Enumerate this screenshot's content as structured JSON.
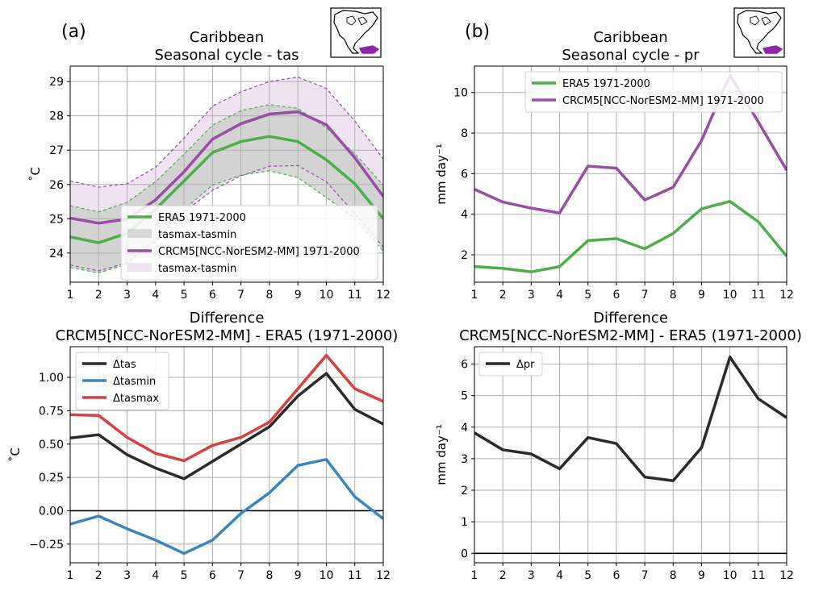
{
  "figure": {
    "panel_a_tag": "(a)",
    "panel_b_tag": "(b)",
    "colors": {
      "era5": "#4daf4a",
      "model": "#984ea3",
      "model_band": "#e9d9ee",
      "overlap_band": "#dcdcdc",
      "dtas": "#2b2b2b",
      "dtasmin": "#3a86bf",
      "dtasmax": "#d94040",
      "dpr": "#2b2b2b"
    }
  },
  "chart_data": [
    {
      "id": "tas",
      "type": "line",
      "title": [
        "Caribbean",
        "Seasonal cycle - tas"
      ],
      "xlabel": "",
      "ylabel": "˚C",
      "x": [
        1,
        2,
        3,
        4,
        5,
        6,
        7,
        8,
        9,
        10,
        11,
        12
      ],
      "xlim": [
        1,
        12
      ],
      "ylim": [
        23.15,
        29.45
      ],
      "yticks": [
        24,
        25,
        26,
        27,
        28,
        29
      ],
      "grid": true,
      "legend_position": "lower-right",
      "legend": [
        "ERA5 1971-2000",
        "tasmax-tasmin",
        "CRCM5[NCC-NorESM2-MM] 1971-2000",
        "tasmax-tasmin"
      ],
      "series": [
        {
          "name": "ERA5 1971-2000",
          "color_key": "era5",
          "values": [
            24.47,
            24.3,
            24.58,
            25.28,
            26.1,
            26.93,
            27.25,
            27.4,
            27.25,
            26.72,
            26.02,
            25.0
          ],
          "tasmax": [
            25.38,
            25.2,
            25.48,
            26.08,
            26.88,
            27.73,
            28.15,
            28.33,
            28.22,
            27.65,
            26.9,
            25.98
          ],
          "tasmin": [
            23.58,
            23.42,
            23.68,
            24.4,
            25.27,
            25.98,
            26.27,
            26.4,
            26.2,
            25.62,
            25.0,
            24.05
          ]
        },
        {
          "name": "CRCM5[NCC-NorESM2-MM] 1971-2000",
          "color_key": "model",
          "values": [
            25.02,
            24.87,
            24.99,
            25.55,
            26.37,
            27.32,
            27.77,
            28.05,
            28.12,
            27.74,
            26.78,
            25.65
          ],
          "tasmax": [
            26.1,
            25.92,
            26.02,
            26.5,
            27.35,
            28.28,
            28.7,
            29.0,
            29.13,
            28.8,
            27.85,
            26.75
          ],
          "tasmin": [
            23.65,
            23.48,
            23.72,
            24.32,
            25.2,
            25.83,
            26.25,
            26.53,
            26.55,
            26.08,
            25.15,
            24.18
          ]
        }
      ]
    },
    {
      "id": "pr",
      "type": "line",
      "title": [
        "Caribbean",
        "Seasonal cycle - pr"
      ],
      "xlabel": "",
      "ylabel": "mm day⁻¹",
      "x": [
        1,
        2,
        3,
        4,
        5,
        6,
        7,
        8,
        9,
        10,
        11,
        12
      ],
      "xlim": [
        1,
        12
      ],
      "ylim": [
        0.65,
        11.3
      ],
      "yticks": [
        2,
        4,
        6,
        8,
        10
      ],
      "grid": true,
      "legend_position": "top-right",
      "series": [
        {
          "name": "ERA5 1971-2000",
          "color_key": "era5",
          "values": [
            1.42,
            1.33,
            1.16,
            1.42,
            2.7,
            2.8,
            2.3,
            3.05,
            4.27,
            4.63,
            3.63,
            1.93
          ]
        },
        {
          "name": "CRCM5[NCC-NorESM2-MM] 1971-2000",
          "color_key": "model",
          "values": [
            5.23,
            4.6,
            4.3,
            4.06,
            6.37,
            6.27,
            4.7,
            5.33,
            7.63,
            10.85,
            8.55,
            6.17
          ]
        }
      ]
    },
    {
      "id": "diff_tas",
      "type": "line",
      "title": [
        "Difference",
        "CRCM5[NCC-NorESM2-MM] - ERA5 (1971-2000)"
      ],
      "xlabel": "",
      "ylabel": "˚C",
      "x": [
        1,
        2,
        3,
        4,
        5,
        6,
        7,
        8,
        9,
        10,
        11,
        12
      ],
      "xlim": [
        1,
        12
      ],
      "ylim": [
        -0.39,
        1.23
      ],
      "yticks": [
        -0.25,
        0.0,
        0.25,
        0.5,
        0.75,
        1.0
      ],
      "ytick_labels": [
        "−0.25",
        "0.00",
        "0.25",
        "0.50",
        "0.75",
        "1.00"
      ],
      "zero_line": true,
      "grid": true,
      "legend_position": "top-left",
      "series": [
        {
          "name": "Δtas",
          "color_key": "dtas",
          "values": [
            0.545,
            0.57,
            0.42,
            0.32,
            0.24,
            0.37,
            0.5,
            0.63,
            0.86,
            1.03,
            0.76,
            0.65
          ]
        },
        {
          "name": "Δtasmin",
          "color_key": "dtasmin",
          "values": [
            -0.1,
            -0.04,
            -0.135,
            -0.22,
            -0.32,
            -0.22,
            -0.02,
            0.135,
            0.34,
            0.385,
            0.105,
            -0.06
          ]
        },
        {
          "name": "Δtasmax",
          "color_key": "dtasmax",
          "values": [
            0.72,
            0.715,
            0.55,
            0.43,
            0.375,
            0.49,
            0.55,
            0.665,
            0.915,
            1.165,
            0.915,
            0.82
          ]
        }
      ]
    },
    {
      "id": "diff_pr",
      "type": "line",
      "title": [
        "Difference",
        "CRCM5[NCC-NorESM2-MM] - ERA5 (1971-2000)"
      ],
      "xlabel": "",
      "ylabel": "mm day⁻¹",
      "x": [
        1,
        2,
        3,
        4,
        5,
        6,
        7,
        8,
        9,
        10,
        11,
        12
      ],
      "xlim": [
        1,
        12
      ],
      "ylim": [
        -0.3,
        6.55
      ],
      "yticks": [
        0,
        1,
        2,
        3,
        4,
        5,
        6
      ],
      "zero_line": true,
      "grid": true,
      "legend_position": "top-left",
      "series": [
        {
          "name": "Δpr",
          "color_key": "dpr",
          "values": [
            3.82,
            3.28,
            3.15,
            2.68,
            3.67,
            3.48,
            2.42,
            2.3,
            3.35,
            6.22,
            4.9,
            4.3
          ]
        }
      ]
    }
  ]
}
